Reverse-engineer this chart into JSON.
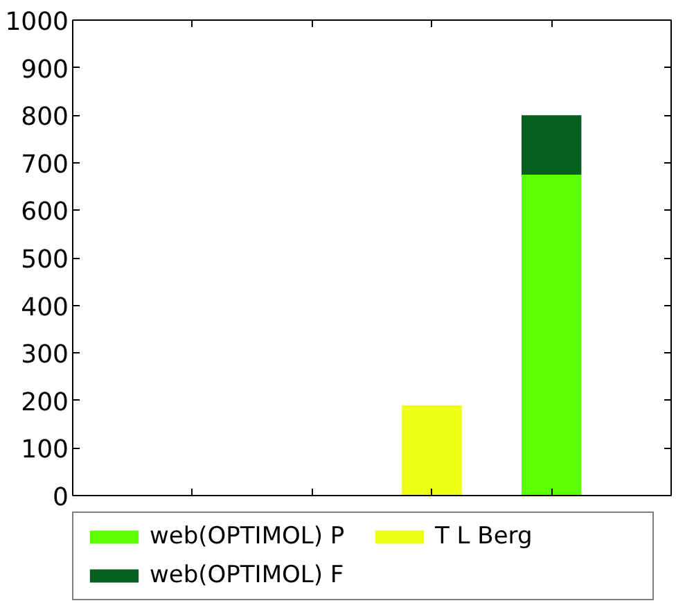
{
  "chart_data": {
    "type": "bar",
    "stacked": true,
    "categories": [
      null,
      null,
      null,
      null
    ],
    "series": [
      {
        "name": "web(OPTIMOL) P",
        "color": "#5cff00",
        "values": [
          null,
          null,
          null,
          675
        ]
      },
      {
        "name": "T L Berg",
        "color": "#eeff11",
        "values": [
          null,
          null,
          190,
          null
        ]
      },
      {
        "name": "web(OPTIMOL) F",
        "color": "#056020",
        "values": [
          null,
          null,
          null,
          125
        ]
      }
    ],
    "ylim": [
      0,
      1000
    ],
    "yticks": [
      0,
      100,
      200,
      300,
      400,
      500,
      600,
      700,
      800,
      900,
      1000
    ],
    "tick_labels": "y",
    "grid": false,
    "legend": "bottom"
  }
}
